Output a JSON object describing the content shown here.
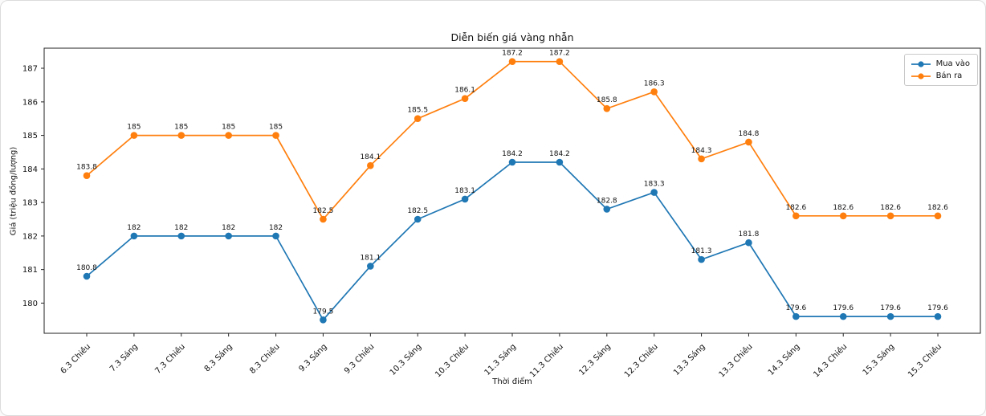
{
  "chart_data": {
    "type": "line",
    "title": "Diễn biến giá vàng nhẫn",
    "xlabel": "Thời điểm",
    "ylabel": "Giá (triệu đồng/lượng)",
    "categories": [
      "6.3 Chiều",
      "7.3 Sáng",
      "7.3 Chiều",
      "8.3 Sáng",
      "8.3 Chiều",
      "9.3 Sáng",
      "9.3 Chiều",
      "10.3 Sáng",
      "10.3 Chiều",
      "11.3 Sáng",
      "11.3 Chiều",
      "12.3 Sáng",
      "12.3 Chiều",
      "13.3 Sáng",
      "13.3 Chiều",
      "14.3 Sáng",
      "14.3 Chiều",
      "15.3 Sáng",
      "15.3 Chiều"
    ],
    "series": [
      {
        "name": "Mua vào",
        "color": "#1f77b4",
        "values": [
          180.8,
          182,
          182,
          182,
          182,
          179.5,
          181.1,
          182.5,
          183.1,
          184.2,
          184.2,
          182.8,
          183.3,
          181.3,
          181.8,
          179.6,
          179.6,
          179.6,
          179.6
        ]
      },
      {
        "name": "Bán ra",
        "color": "#ff7f0e",
        "values": [
          183.8,
          185,
          185,
          185,
          185,
          182.5,
          184.1,
          185.5,
          186.1,
          187.2,
          187.2,
          185.8,
          186.3,
          184.3,
          184.8,
          182.6,
          182.6,
          182.6,
          182.6
        ]
      }
    ],
    "ylim": [
      179.1,
      187.6
    ],
    "yticks": [
      180,
      181,
      182,
      183,
      184,
      185,
      186,
      187
    ],
    "legend_position": "upper right",
    "grid": false,
    "point_labels": true,
    "marker": "circle"
  }
}
